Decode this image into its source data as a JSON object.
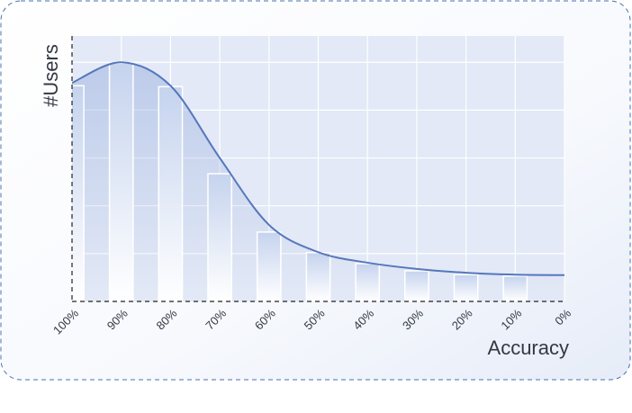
{
  "chart_data": {
    "type": "bar",
    "x_label": "Accuracy",
    "y_label": "#Users",
    "categories": [
      "100%",
      "90%",
      "80%",
      "70%",
      "60%",
      "50%",
      "40%",
      "30%",
      "20%",
      "10%",
      "0%"
    ],
    "series": [
      {
        "type": "bar",
        "color": "#c5d3ee",
        "values": [
          4.51,
          4.98,
          4.49,
          2.67,
          1.45,
          1.02,
          0.79,
          0.64,
          0.56,
          0.53,
          null
        ]
      },
      {
        "type": "line",
        "color": "#5577bb",
        "values": [
          4.57,
          5.0,
          4.51,
          3.0,
          1.6,
          1.03,
          0.81,
          0.68,
          0.6,
          0.56,
          0.55
        ]
      }
    ],
    "ylim": [
      0,
      5.55
    ],
    "yticks": [
      1,
      2,
      3,
      4,
      5
    ],
    "grid": true
  }
}
